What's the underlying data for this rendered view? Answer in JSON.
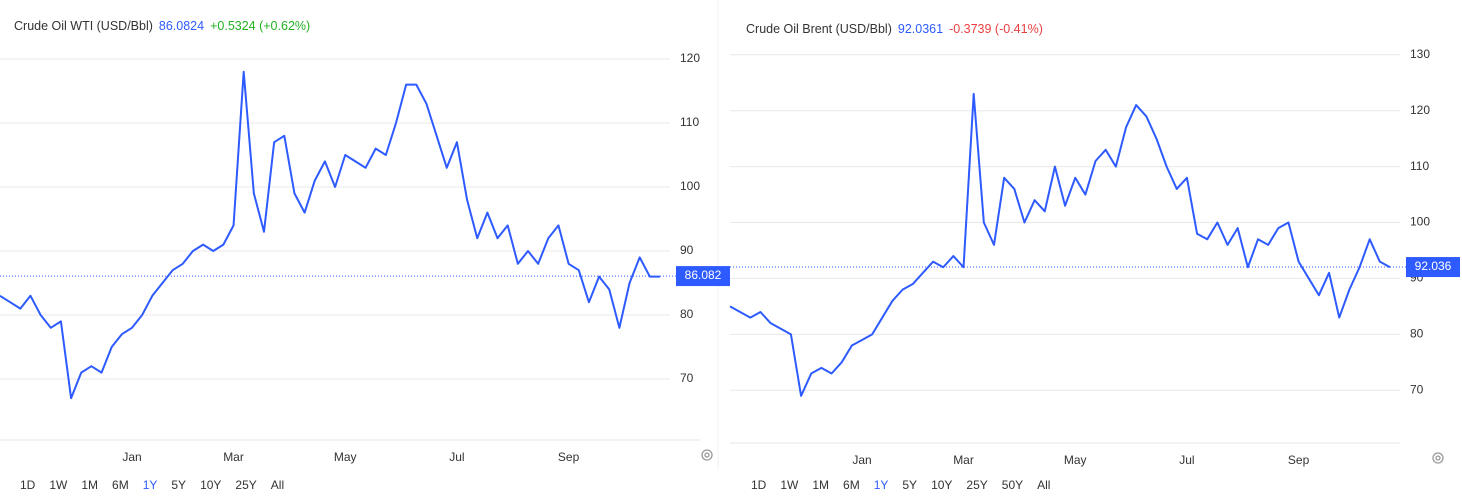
{
  "chart_data": [
    {
      "type": "line",
      "title": "Crude Oil WTI (USD/Bbl)",
      "price": "86.0824",
      "change": "+0.5324 (+0.62%)",
      "price_color": "#2e5bff",
      "change_color": "#22b322",
      "color": "#2e5bff",
      "categories": [
        null,
        null,
        null,
        null,
        null,
        null,
        null,
        null,
        null,
        null,
        null,
        null,
        null,
        "Jan",
        null,
        null,
        null,
        null,
        null,
        null,
        null,
        null,
        null,
        "Mar",
        null,
        null,
        null,
        null,
        null,
        null,
        null,
        null,
        null,
        null,
        "May",
        null,
        null,
        null,
        null,
        null,
        null,
        null,
        null,
        null,
        null,
        "Jul",
        null,
        null,
        null,
        null,
        null,
        null,
        null,
        null,
        null,
        null,
        "Sep",
        null,
        null,
        null,
        null,
        null,
        null,
        null,
        null,
        null
      ],
      "values": [
        83,
        82,
        81,
        83,
        80,
        78,
        79,
        67,
        71,
        72,
        71,
        75,
        77,
        78,
        80,
        83,
        85,
        87,
        88,
        90,
        91,
        90,
        91,
        94,
        118,
        99,
        93,
        107,
        108,
        99,
        96,
        101,
        104,
        100,
        105,
        104,
        103,
        106,
        105,
        110,
        116,
        116,
        113,
        108,
        103,
        107,
        98,
        92,
        96,
        92,
        94,
        88,
        90,
        88,
        92,
        94,
        88,
        87,
        82,
        86,
        84,
        78,
        85,
        89,
        86,
        86
      ],
      "ylim": [
        61,
        125
      ],
      "yticks": [
        70,
        80,
        90,
        100,
        110,
        120
      ],
      "grid": true,
      "last_value": 86.082,
      "ranges": [
        "1D",
        "1W",
        "1M",
        "6M",
        "1Y",
        "5Y",
        "10Y",
        "25Y",
        "All"
      ],
      "selected_range": "1Y"
    },
    {
      "type": "line",
      "title": "Crude Oil Brent (USD/Bbl)",
      "price": "92.0361",
      "change": "-0.3739 (-0.41%)",
      "price_color": "#2e5bff",
      "change_color": "#e84040",
      "color": "#2e5bff",
      "categories": [
        null,
        null,
        null,
        null,
        null,
        null,
        null,
        null,
        null,
        null,
        null,
        null,
        null,
        "Jan",
        null,
        null,
        null,
        null,
        null,
        null,
        null,
        null,
        null,
        "Mar",
        null,
        null,
        null,
        null,
        null,
        null,
        null,
        null,
        null,
        null,
        "May",
        null,
        null,
        null,
        null,
        null,
        null,
        null,
        null,
        null,
        null,
        "Jul",
        null,
        null,
        null,
        null,
        null,
        null,
        null,
        null,
        null,
        null,
        "Sep",
        null,
        null,
        null,
        null,
        null,
        null,
        null,
        null,
        null
      ],
      "values": [
        85,
        84,
        83,
        84,
        82,
        81,
        80,
        69,
        73,
        74,
        73,
        75,
        78,
        79,
        80,
        83,
        86,
        88,
        89,
        91,
        93,
        92,
        94,
        92,
        123,
        100,
        96,
        108,
        106,
        100,
        104,
        102,
        110,
        103,
        108,
        105,
        111,
        113,
        110,
        117,
        121,
        119,
        115,
        110,
        106,
        108,
        98,
        97,
        100,
        96,
        99,
        92,
        97,
        96,
        99,
        100,
        93,
        90,
        87,
        91,
        83,
        88,
        92,
        97,
        93,
        92
      ],
      "ylim": [
        62,
        133
      ],
      "yticks": [
        70,
        80,
        90,
        100,
        110,
        120,
        130
      ],
      "grid": true,
      "last_value": 92.036,
      "ranges": [
        "1D",
        "1W",
        "1M",
        "6M",
        "1Y",
        "5Y",
        "10Y",
        "25Y",
        "50Y",
        "All"
      ],
      "selected_range": "1Y"
    }
  ]
}
